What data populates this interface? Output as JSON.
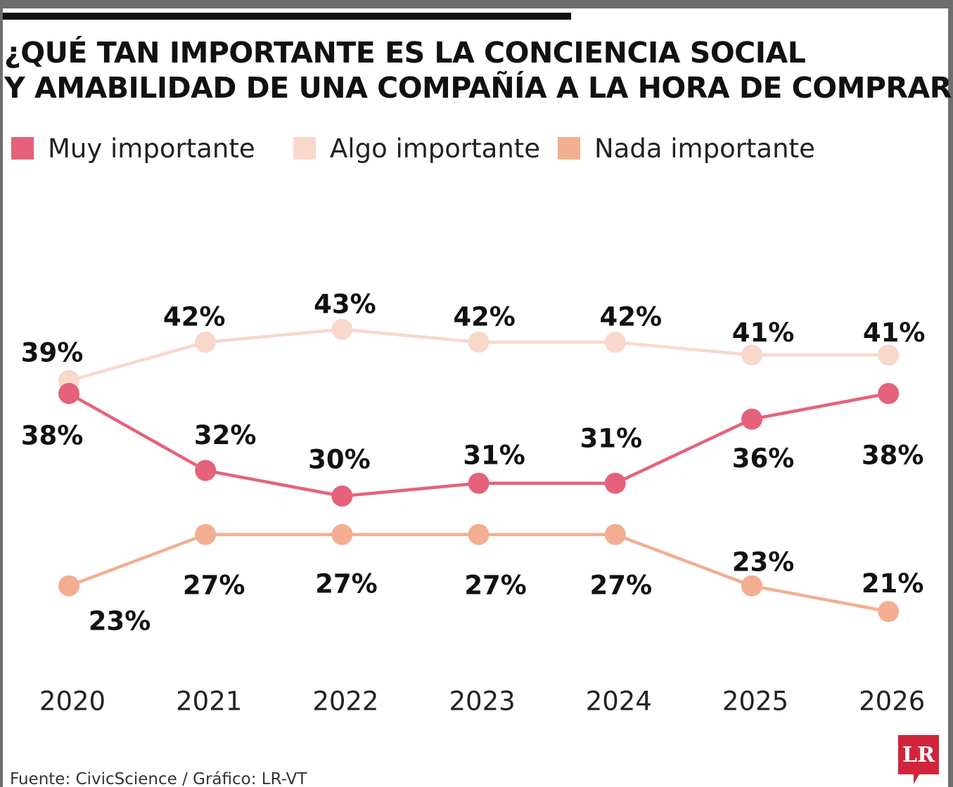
{
  "chart_data": {
    "type": "line",
    "title": "¿QUÉ TAN IMPORTANTE ES LA CONCIENCIA SOCIAL Y AMABILIDAD DE UNA COMPAÑÍA A LA HORA DE COMPRAR?",
    "title_lines": [
      "¿QUÉ TAN IMPORTANTE ES LA CONCIENCIA SOCIAL",
      "Y AMABILIDAD DE UNA COMPAÑÍA A LA HORA DE COMPRAR?"
    ],
    "x": [
      "2020",
      "2021",
      "2022",
      "2023",
      "2024",
      "2025",
      "2026"
    ],
    "xlabel": "",
    "ylabel": "",
    "ylim": [
      15,
      50
    ],
    "grid": false,
    "legend_position": "top-left",
    "series": [
      {
        "name": "Muy importante",
        "color": "#e5627a",
        "values": [
          38,
          32,
          30,
          31,
          31,
          36,
          38
        ],
        "labels": [
          "38%",
          "32%",
          "30%",
          "31%",
          "31%",
          "36%",
          "38%"
        ]
      },
      {
        "name": "Algo importante",
        "color": "#f8d8cb",
        "values": [
          39,
          42,
          43,
          42,
          42,
          41,
          41
        ],
        "labels": [
          "39%",
          "42%",
          "43%",
          "42%",
          "42%",
          "41%",
          "41%"
        ]
      },
      {
        "name": "Nada importante",
        "color": "#f3ae91",
        "values": [
          23,
          27,
          27,
          27,
          27,
          23,
          21
        ],
        "labels": [
          "23%",
          "27%",
          "27%",
          "27%",
          "27%",
          "23%",
          "21%"
        ]
      }
    ]
  },
  "source": "Fuente: CivicScience / Gráfico: LR-VT",
  "logo": {
    "text": "LR",
    "color": "#d1243c"
  }
}
